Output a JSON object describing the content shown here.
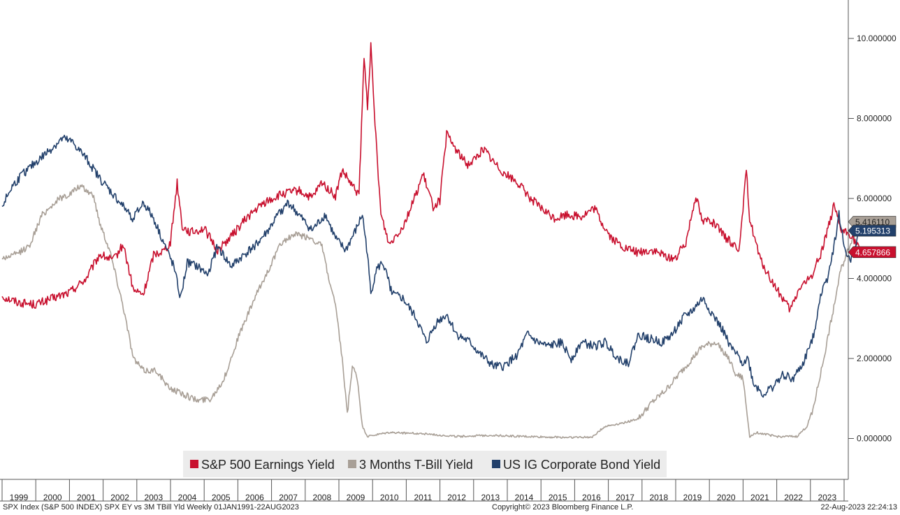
{
  "chart_data": {
    "type": "line",
    "x_axis": {
      "labels": [
        "1999",
        "2000",
        "2001",
        "2002",
        "2003",
        "2004",
        "2005",
        "2006",
        "2007",
        "2008",
        "2009",
        "2010",
        "2011",
        "2012",
        "2013",
        "2014",
        "2015",
        "2016",
        "2017",
        "2018",
        "2019",
        "2020",
        "2021",
        "2022",
        "2023"
      ]
    },
    "y_axis": {
      "range": [
        -1.0,
        11.0
      ],
      "ticks": [
        "10.000000",
        "8.000000",
        "6.000000",
        "4.000000",
        "2.000000",
        "0.000000"
      ],
      "tick_values": [
        10,
        8,
        6,
        4,
        2,
        0
      ],
      "side": "right"
    },
    "legend": {
      "placement": "bottom-center"
    },
    "series": [
      {
        "name": "S&P 500 Earnings Yield",
        "color": "#c8102e",
        "last_value": "4.657866",
        "points": [
          [
            1998.0,
            3.55
          ],
          [
            1998.5,
            3.4
          ],
          [
            1999.0,
            3.35
          ],
          [
            1999.5,
            3.5
          ],
          [
            2000.0,
            3.65
          ],
          [
            2000.5,
            4.0
          ],
          [
            2000.9,
            4.6
          ],
          [
            2001.3,
            4.45
          ],
          [
            2001.6,
            4.85
          ],
          [
            2001.9,
            3.7
          ],
          [
            2002.2,
            3.6
          ],
          [
            2002.5,
            4.6
          ],
          [
            2002.8,
            4.7
          ],
          [
            2003.0,
            4.9
          ],
          [
            2003.2,
            6.4
          ],
          [
            2003.35,
            5.3
          ],
          [
            2003.6,
            5.15
          ],
          [
            2004.0,
            5.25
          ],
          [
            2004.4,
            4.7
          ],
          [
            2004.8,
            5.05
          ],
          [
            2005.3,
            5.55
          ],
          [
            2005.8,
            5.9
          ],
          [
            2006.3,
            6.1
          ],
          [
            2006.8,
            6.2
          ],
          [
            2007.2,
            6.0
          ],
          [
            2007.5,
            6.4
          ],
          [
            2007.9,
            6.05
          ],
          [
            2008.1,
            6.7
          ],
          [
            2008.4,
            6.3
          ],
          [
            2008.6,
            6.1
          ],
          [
            2008.75,
            9.5
          ],
          [
            2008.85,
            8.3
          ],
          [
            2008.95,
            9.8
          ],
          [
            2009.05,
            8.2
          ],
          [
            2009.25,
            5.6
          ],
          [
            2009.5,
            4.85
          ],
          [
            2009.7,
            5.1
          ],
          [
            2009.9,
            5.3
          ],
          [
            2010.2,
            5.9
          ],
          [
            2010.5,
            6.6
          ],
          [
            2010.8,
            5.8
          ],
          [
            2011.0,
            5.95
          ],
          [
            2011.2,
            7.6
          ],
          [
            2011.5,
            7.2
          ],
          [
            2011.8,
            6.85
          ],
          [
            2012.0,
            6.95
          ],
          [
            2012.3,
            7.25
          ],
          [
            2012.6,
            6.9
          ],
          [
            2012.9,
            6.65
          ],
          [
            2013.3,
            6.4
          ],
          [
            2013.7,
            6.0
          ],
          [
            2014.0,
            5.75
          ],
          [
            2014.4,
            5.5
          ],
          [
            2014.8,
            5.6
          ],
          [
            2015.2,
            5.55
          ],
          [
            2015.6,
            5.75
          ],
          [
            2015.8,
            5.4
          ],
          [
            2016.1,
            5.0
          ],
          [
            2016.5,
            4.75
          ],
          [
            2016.9,
            4.65
          ],
          [
            2017.3,
            4.7
          ],
          [
            2017.7,
            4.55
          ],
          [
            2018.0,
            4.5
          ],
          [
            2018.3,
            4.9
          ],
          [
            2018.6,
            6.1
          ],
          [
            2018.8,
            5.4
          ],
          [
            2019.0,
            5.5
          ],
          [
            2019.5,
            5.0
          ],
          [
            2019.9,
            4.75
          ],
          [
            2020.1,
            6.7
          ],
          [
            2020.2,
            5.5
          ],
          [
            2020.5,
            4.5
          ],
          [
            2020.8,
            4.0
          ],
          [
            2021.1,
            3.6
          ],
          [
            2021.4,
            3.2
          ],
          [
            2021.7,
            3.8
          ],
          [
            2022.0,
            4.0
          ],
          [
            2022.3,
            4.6
          ],
          [
            2022.7,
            5.8
          ],
          [
            2022.9,
            5.2
          ],
          [
            2023.2,
            5.1
          ],
          [
            2023.5,
            4.65
          ]
        ]
      },
      {
        "name": "3 Months T-Bill Yield",
        "color": "#a89f96",
        "last_value": "5.416110",
        "points": [
          [
            1998.0,
            4.5
          ],
          [
            1998.4,
            4.6
          ],
          [
            1998.8,
            4.8
          ],
          [
            1999.2,
            5.6
          ],
          [
            1999.7,
            6.0
          ],
          [
            2000.0,
            6.1
          ],
          [
            2000.3,
            6.3
          ],
          [
            2000.7,
            6.1
          ],
          [
            2000.9,
            5.4
          ],
          [
            2001.2,
            4.7
          ],
          [
            2001.6,
            3.3
          ],
          [
            2001.9,
            2.0
          ],
          [
            2002.2,
            1.7
          ],
          [
            2002.6,
            1.7
          ],
          [
            2002.9,
            1.3
          ],
          [
            2003.4,
            1.1
          ],
          [
            2003.8,
            0.95
          ],
          [
            2004.2,
            1.0
          ],
          [
            2004.6,
            1.5
          ],
          [
            2005.0,
            2.5
          ],
          [
            2005.5,
            3.5
          ],
          [
            2005.9,
            4.2
          ],
          [
            2006.3,
            4.9
          ],
          [
            2006.7,
            5.1
          ],
          [
            2007.2,
            5.0
          ],
          [
            2007.5,
            4.8
          ],
          [
            2007.7,
            4.0
          ],
          [
            2007.9,
            3.3
          ],
          [
            2008.1,
            2.0
          ],
          [
            2008.25,
            0.6
          ],
          [
            2008.4,
            1.8
          ],
          [
            2008.55,
            1.5
          ],
          [
            2008.7,
            0.3
          ],
          [
            2008.85,
            0.05
          ],
          [
            2009.5,
            0.15
          ],
          [
            2010.5,
            0.12
          ],
          [
            2011.5,
            0.05
          ],
          [
            2012.5,
            0.08
          ],
          [
            2013.5,
            0.05
          ],
          [
            2014.5,
            0.03
          ],
          [
            2015.5,
            0.03
          ],
          [
            2015.9,
            0.3
          ],
          [
            2016.5,
            0.4
          ],
          [
            2016.9,
            0.5
          ],
          [
            2017.3,
            0.9
          ],
          [
            2017.7,
            1.2
          ],
          [
            2018.0,
            1.5
          ],
          [
            2018.4,
            1.9
          ],
          [
            2018.8,
            2.3
          ],
          [
            2019.2,
            2.4
          ],
          [
            2019.5,
            2.1
          ],
          [
            2019.8,
            1.6
          ],
          [
            2020.0,
            1.5
          ],
          [
            2020.2,
            0.05
          ],
          [
            2020.4,
            0.15
          ],
          [
            2021.0,
            0.05
          ],
          [
            2021.6,
            0.05
          ],
          [
            2021.9,
            0.3
          ],
          [
            2022.1,
            0.8
          ],
          [
            2022.4,
            2.0
          ],
          [
            2022.7,
            3.3
          ],
          [
            2022.9,
            4.2
          ],
          [
            2023.2,
            4.9
          ],
          [
            2023.5,
            5.42
          ]
        ]
      },
      {
        "name": "US IG Corporate Bond Yield",
        "color": "#22406b",
        "last_value": "5.195313",
        "points": [
          [
            1998.0,
            5.8
          ],
          [
            1998.3,
            6.3
          ],
          [
            1998.6,
            6.6
          ],
          [
            1999.0,
            6.9
          ],
          [
            1999.4,
            7.2
          ],
          [
            1999.8,
            7.5
          ],
          [
            2000.1,
            7.4
          ],
          [
            2000.5,
            7.0
          ],
          [
            2000.9,
            6.5
          ],
          [
            2001.2,
            6.2
          ],
          [
            2001.6,
            5.8
          ],
          [
            2001.9,
            5.5
          ],
          [
            2002.2,
            5.9
          ],
          [
            2002.5,
            5.5
          ],
          [
            2002.8,
            4.9
          ],
          [
            2003.1,
            4.3
          ],
          [
            2003.3,
            3.5
          ],
          [
            2003.5,
            4.4
          ],
          [
            2003.8,
            4.3
          ],
          [
            2004.1,
            4.1
          ],
          [
            2004.4,
            4.8
          ],
          [
            2004.8,
            4.3
          ],
          [
            2005.2,
            4.6
          ],
          [
            2005.6,
            4.9
          ],
          [
            2005.9,
            5.2
          ],
          [
            2006.2,
            5.6
          ],
          [
            2006.5,
            5.9
          ],
          [
            2006.8,
            5.6
          ],
          [
            2007.2,
            5.2
          ],
          [
            2007.6,
            5.6
          ],
          [
            2007.9,
            5.0
          ],
          [
            2008.2,
            4.7
          ],
          [
            2008.5,
            5.2
          ],
          [
            2008.7,
            5.6
          ],
          [
            2008.85,
            4.6
          ],
          [
            2008.95,
            3.6
          ],
          [
            2009.1,
            4.2
          ],
          [
            2009.3,
            4.4
          ],
          [
            2009.6,
            3.6
          ],
          [
            2009.9,
            3.5
          ],
          [
            2010.3,
            3.0
          ],
          [
            2010.6,
            2.4
          ],
          [
            2010.9,
            2.9
          ],
          [
            2011.2,
            3.1
          ],
          [
            2011.5,
            2.6
          ],
          [
            2011.9,
            2.4
          ],
          [
            2012.2,
            2.1
          ],
          [
            2012.6,
            1.8
          ],
          [
            2012.9,
            1.8
          ],
          [
            2013.3,
            2.1
          ],
          [
            2013.6,
            2.6
          ],
          [
            2013.9,
            2.4
          ],
          [
            2014.2,
            2.3
          ],
          [
            2014.6,
            2.4
          ],
          [
            2014.9,
            2.0
          ],
          [
            2015.2,
            2.4
          ],
          [
            2015.6,
            2.3
          ],
          [
            2015.9,
            2.4
          ],
          [
            2016.3,
            2.0
          ],
          [
            2016.6,
            1.9
          ],
          [
            2016.9,
            2.6
          ],
          [
            2017.2,
            2.5
          ],
          [
            2017.6,
            2.4
          ],
          [
            2017.9,
            2.6
          ],
          [
            2018.2,
            3.0
          ],
          [
            2018.5,
            3.2
          ],
          [
            2018.8,
            3.5
          ],
          [
            2019.1,
            3.1
          ],
          [
            2019.4,
            2.7
          ],
          [
            2019.7,
            2.2
          ],
          [
            2020.0,
            1.9
          ],
          [
            2020.15,
            2.0
          ],
          [
            2020.3,
            1.4
          ],
          [
            2020.6,
            1.1
          ],
          [
            2020.9,
            1.3
          ],
          [
            2021.2,
            1.6
          ],
          [
            2021.5,
            1.5
          ],
          [
            2021.8,
            1.9
          ],
          [
            2022.1,
            2.6
          ],
          [
            2022.3,
            3.6
          ],
          [
            2022.5,
            4.0
          ],
          [
            2022.7,
            4.8
          ],
          [
            2022.85,
            5.6
          ],
          [
            2023.0,
            4.8
          ],
          [
            2023.2,
            4.4
          ],
          [
            2023.35,
            4.9
          ],
          [
            2023.5,
            5.2
          ]
        ]
      }
    ]
  },
  "footer": {
    "left": "SPX Index (S&P 500 INDEX) SPX EY vs 3M TBill Yld  Weekly 01JAN1991-22AUG2023",
    "center": "Copyright© 2023 Bloomberg Finance L.P.",
    "right": "22-Aug-2023 22:24:13"
  }
}
